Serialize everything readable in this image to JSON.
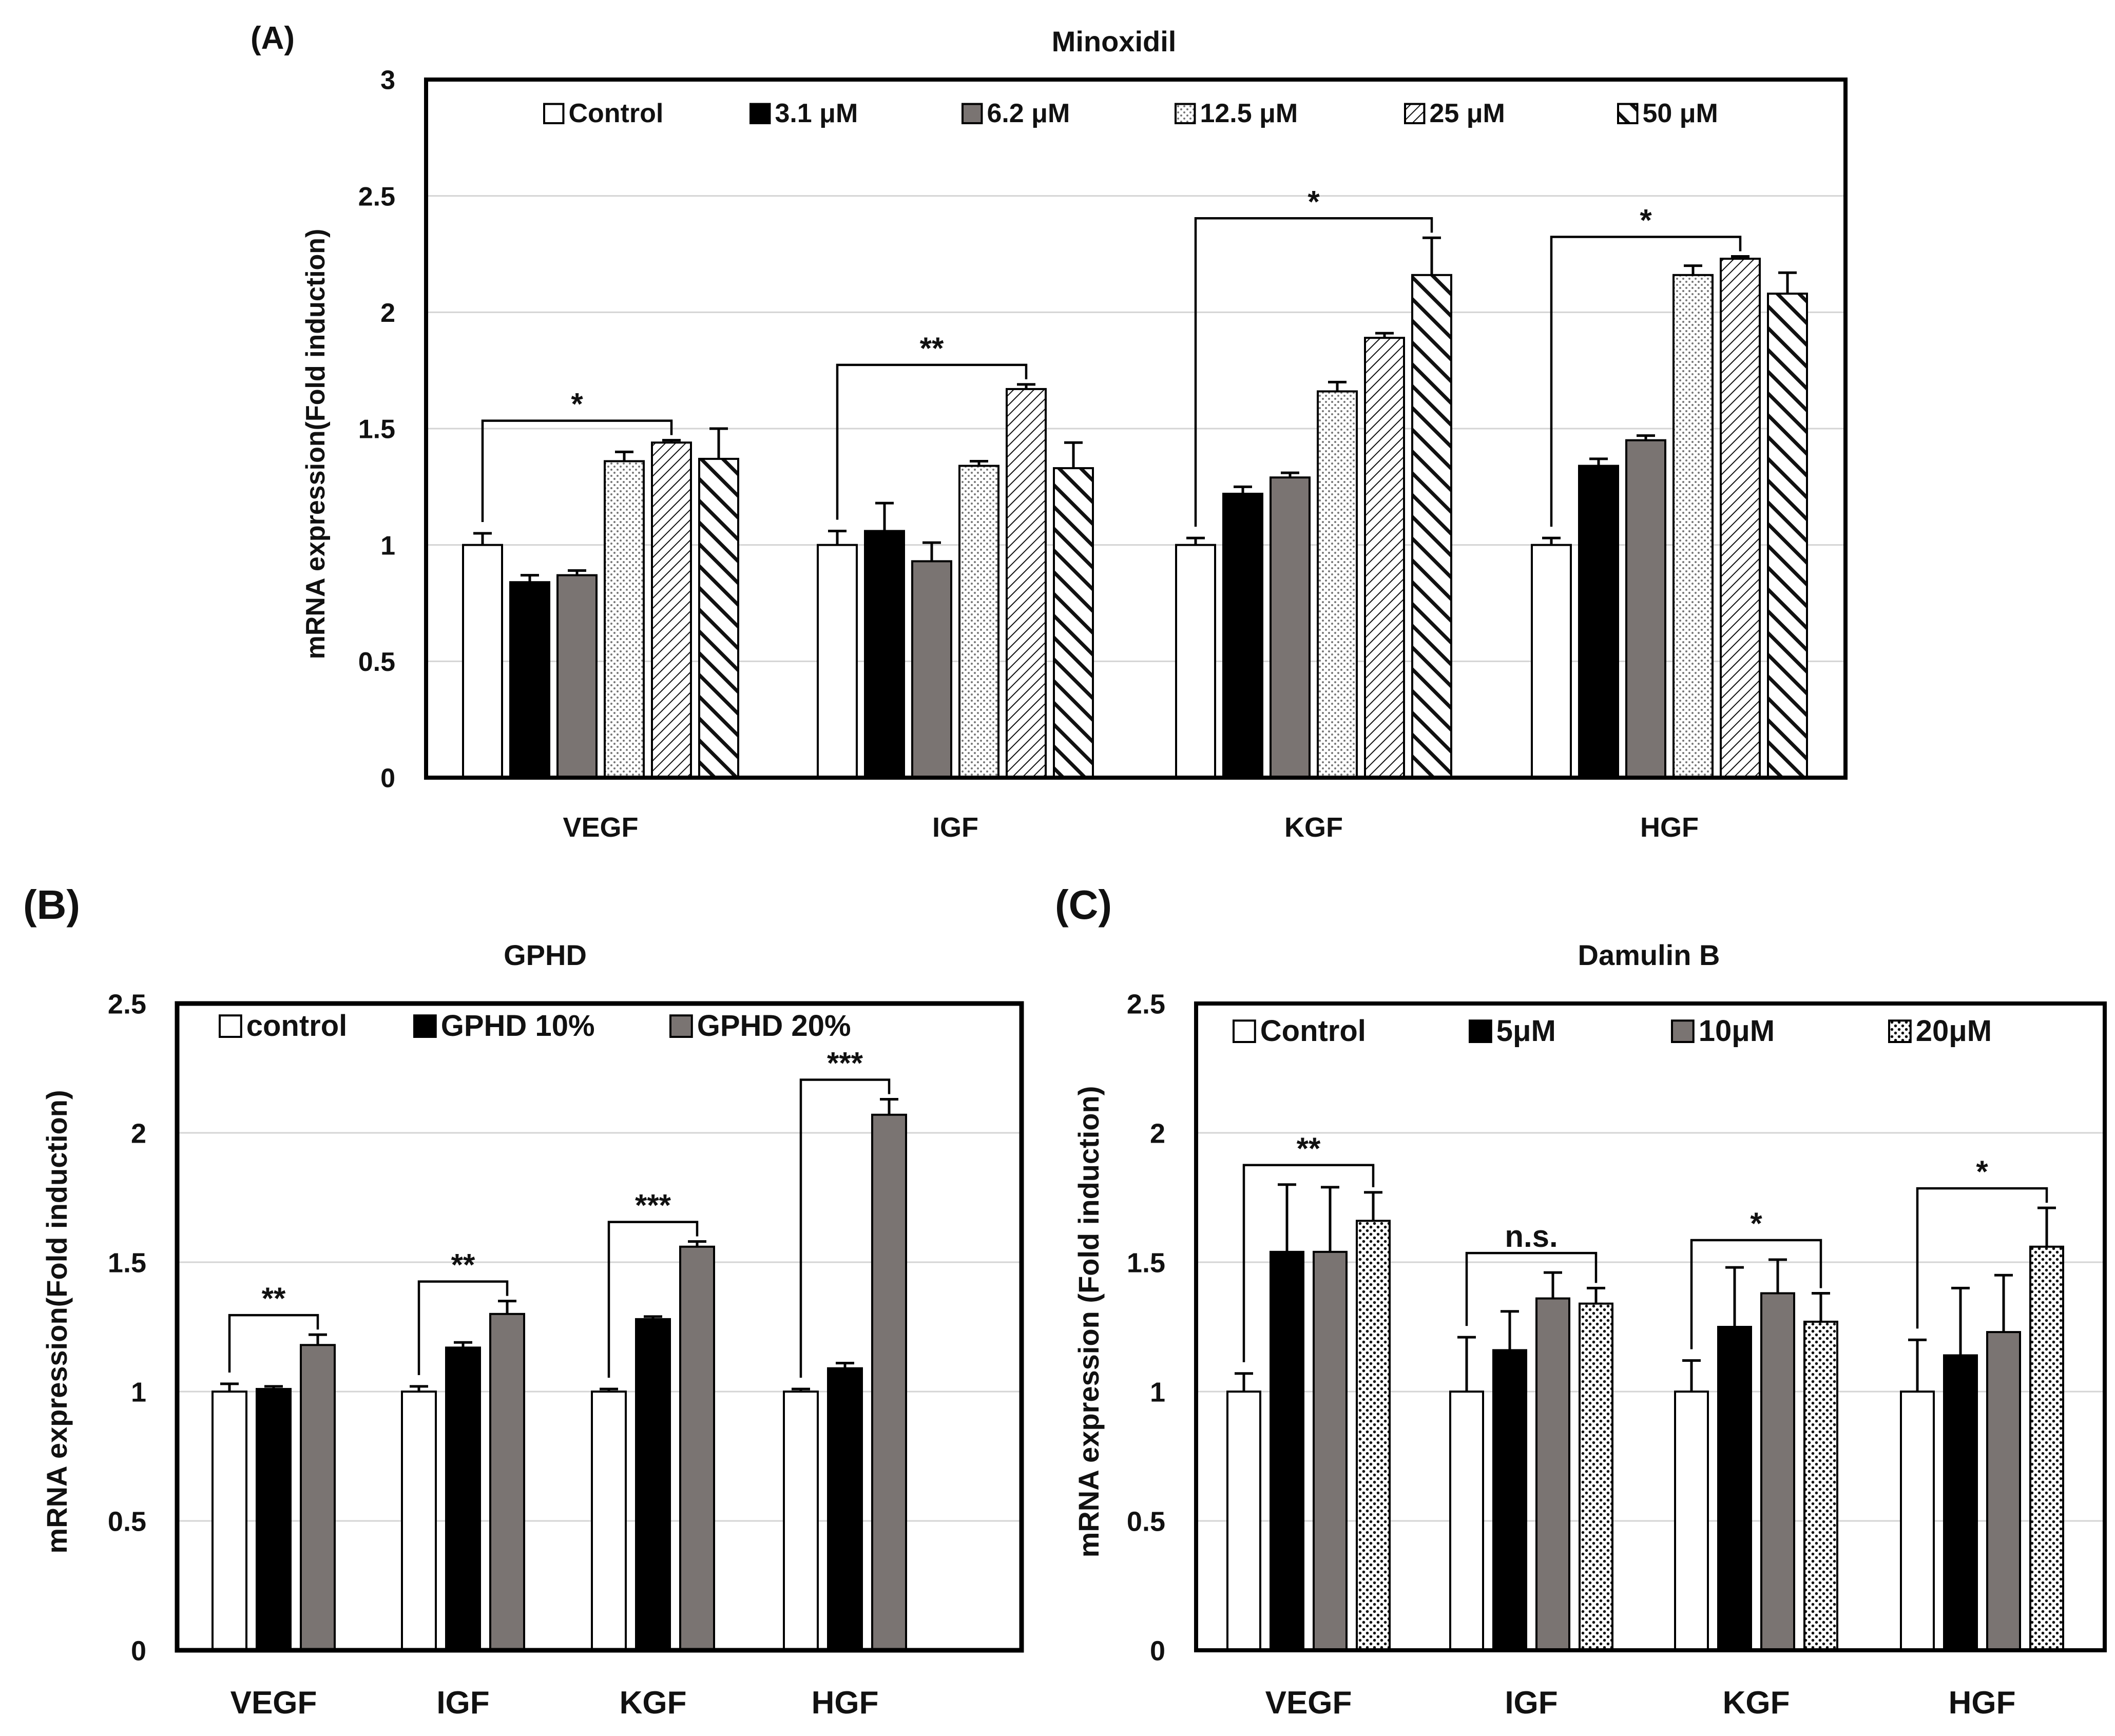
{
  "chart_data": [
    {
      "id": "A",
      "panel_label": "(A)",
      "type": "bar",
      "title": "Minoxidil",
      "ylabel": "mRNA expression(Fold induction)",
      "xlabel": "",
      "ylim": [
        0,
        3
      ],
      "yticks": [
        "0",
        "0.5",
        "1",
        "1.5",
        "2",
        "2.5",
        "3"
      ],
      "grid": true,
      "legend_position": "top",
      "categories": [
        "VEGF",
        "IGF",
        "KGF",
        "HGF"
      ],
      "series": [
        {
          "name": "Control",
          "pattern": "white",
          "values": [
            1.0,
            1.0,
            1.0,
            1.0
          ],
          "errors": [
            0.05,
            0.06,
            0.03,
            0.03
          ]
        },
        {
          "name": "3.1 μM",
          "pattern": "black",
          "values": [
            0.84,
            1.06,
            1.22,
            1.34
          ],
          "errors": [
            0.03,
            0.12,
            0.03,
            0.03
          ]
        },
        {
          "name": "6.2 μM",
          "pattern": "gray",
          "values": [
            0.87,
            0.93,
            1.29,
            1.45
          ],
          "errors": [
            0.02,
            0.08,
            0.02,
            0.02
          ]
        },
        {
          "name": "12.5 μM",
          "pattern": "dots-light",
          "values": [
            1.36,
            1.34,
            1.66,
            2.16
          ],
          "errors": [
            0.04,
            0.02,
            0.04,
            0.04
          ]
        },
        {
          "name": "25 μM",
          "pattern": "hatch-thin",
          "values": [
            1.44,
            1.67,
            1.89,
            2.23
          ],
          "errors": [
            0.01,
            0.02,
            0.02,
            0.01
          ]
        },
        {
          "name": "50 μM",
          "pattern": "hatch-thick",
          "values": [
            1.37,
            1.33,
            2.16,
            2.08
          ],
          "errors": [
            0.13,
            0.11,
            0.16,
            0.09
          ]
        }
      ],
      "annotations": [
        {
          "category": 0,
          "from": 0,
          "to": 4,
          "label": "*"
        },
        {
          "category": 1,
          "from": 0,
          "to": 4,
          "label": "**"
        },
        {
          "category": 2,
          "from": 0,
          "to": 5,
          "label": "*"
        },
        {
          "category": 3,
          "from": 0,
          "to": 4,
          "label": "*"
        }
      ]
    },
    {
      "id": "B",
      "panel_label": "(B)",
      "type": "bar",
      "title": "GPHD",
      "ylabel": "mRNA expression(Fold induction)",
      "xlabel": "",
      "ylim": [
        0,
        2.5
      ],
      "yticks": [
        "0",
        "0.5",
        "1",
        "1.5",
        "2",
        "2.5"
      ],
      "grid": true,
      "legend_position": "top",
      "categories": [
        "VEGF",
        "IGF",
        "KGF",
        "HGF"
      ],
      "series": [
        {
          "name": "control",
          "pattern": "white",
          "values": [
            1.0,
            1.0,
            1.0,
            1.0
          ],
          "errors": [
            0.03,
            0.02,
            0.01,
            0.01
          ]
        },
        {
          "name": "GPHD 10%",
          "pattern": "black",
          "values": [
            1.01,
            1.17,
            1.28,
            1.09
          ],
          "errors": [
            0.01,
            0.02,
            0.01,
            0.02
          ]
        },
        {
          "name": "GPHD 20%",
          "pattern": "gray",
          "values": [
            1.18,
            1.3,
            1.56,
            2.07
          ],
          "errors": [
            0.04,
            0.05,
            0.02,
            0.06
          ]
        }
      ],
      "annotations": [
        {
          "category": 0,
          "from": 0,
          "to": 2,
          "label": "**"
        },
        {
          "category": 1,
          "from": 0,
          "to": 2,
          "label": "**"
        },
        {
          "category": 2,
          "from": 0,
          "to": 2,
          "label": "***"
        },
        {
          "category": 3,
          "from": 0,
          "to": 2,
          "label": "***"
        }
      ]
    },
    {
      "id": "C",
      "panel_label": "(C)",
      "type": "bar",
      "title": "Damulin B",
      "ylabel": "mRNA expression (Fold induction)",
      "xlabel": "",
      "ylim": [
        0,
        2.5
      ],
      "yticks": [
        "0",
        "0.5",
        "1",
        "1.5",
        "2",
        "2.5"
      ],
      "grid": true,
      "legend_position": "top",
      "categories": [
        "VEGF",
        "IGF",
        "KGF",
        "HGF"
      ],
      "series": [
        {
          "name": "Control",
          "pattern": "white",
          "values": [
            1.0,
            1.0,
            1.0,
            1.0
          ],
          "errors": [
            0.07,
            0.21,
            0.12,
            0.2
          ]
        },
        {
          "name": "5μM",
          "pattern": "black",
          "values": [
            1.54,
            1.16,
            1.25,
            1.14
          ],
          "errors": [
            0.26,
            0.15,
            0.23,
            0.26
          ]
        },
        {
          "name": "10μM",
          "pattern": "gray",
          "values": [
            1.54,
            1.36,
            1.38,
            1.23
          ],
          "errors": [
            0.25,
            0.1,
            0.13,
            0.22
          ]
        },
        {
          "name": "20μM",
          "pattern": "dots",
          "values": [
            1.66,
            1.34,
            1.27,
            1.56
          ],
          "errors": [
            0.11,
            0.06,
            0.11,
            0.15
          ]
        }
      ],
      "annotations": [
        {
          "category": 0,
          "from": 0,
          "to": 3,
          "label": "**"
        },
        {
          "category": 1,
          "from": 0,
          "to": 3,
          "label": "n.s."
        },
        {
          "category": 2,
          "from": 0,
          "to": 3,
          "label": "*"
        },
        {
          "category": 3,
          "from": 0,
          "to": 3,
          "label": "*"
        }
      ]
    }
  ]
}
